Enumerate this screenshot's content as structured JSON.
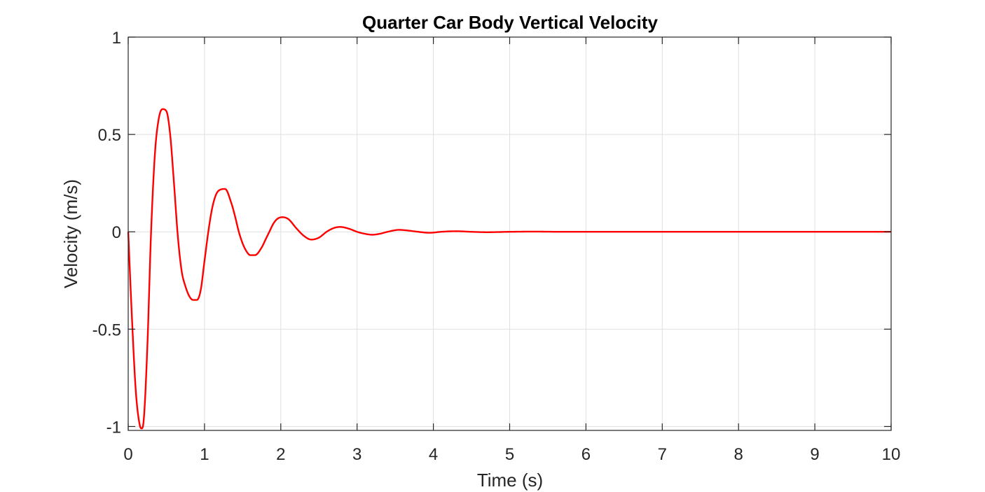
{
  "chart_data": {
    "type": "line",
    "title": "Quarter Car Body Vertical Velocity",
    "xlabel": "Time (s)",
    "ylabel": "Velocity (m/s)",
    "xlim": [
      0,
      10
    ],
    "ylim": [
      -1.02,
      1
    ],
    "xticks": [
      0,
      1,
      2,
      3,
      4,
      5,
      6,
      7,
      8,
      9,
      10
    ],
    "xtick_labels": [
      "0",
      "1",
      "2",
      "3",
      "4",
      "5",
      "6",
      "7",
      "8",
      "9",
      "10"
    ],
    "yticks": [
      -1,
      -0.5,
      0,
      0.5,
      1
    ],
    "ytick_labels": [
      "-1",
      "-0.5",
      "0",
      "0.5",
      "1"
    ],
    "grid": true,
    "series": [
      {
        "color": "#ff0000",
        "x": [
          0,
          0.05,
          0.1,
          0.15,
          0.175,
          0.2,
          0.25,
          0.3,
          0.35,
          0.4,
          0.45,
          0.5,
          0.55,
          0.6,
          0.65,
          0.7,
          0.75,
          0.8,
          0.85,
          0.9,
          0.95,
          1.0,
          1.05,
          1.1,
          1.15,
          1.2,
          1.27,
          1.35,
          1.4,
          1.45,
          1.5,
          1.55,
          1.6,
          1.66,
          1.75,
          1.8,
          1.85,
          1.9,
          1.95,
          2.02,
          2.1,
          2.2,
          2.3,
          2.4,
          2.5,
          2.6,
          2.7,
          2.78,
          2.9,
          3.0,
          3.1,
          3.2,
          3.3,
          3.4,
          3.55,
          3.7,
          3.8,
          3.95,
          4.1,
          4.3,
          4.5,
          4.7,
          5.0,
          5.3,
          5.7,
          6.0,
          6.5,
          7.0,
          8.0,
          9.0,
          10.0
        ],
        "values": [
          0,
          -0.45,
          -0.82,
          -0.99,
          -1.01,
          -0.98,
          -0.6,
          0.0,
          0.4,
          0.58,
          0.63,
          0.62,
          0.5,
          0.25,
          -0.02,
          -0.2,
          -0.28,
          -0.33,
          -0.35,
          -0.35,
          -0.3,
          -0.15,
          0.0,
          0.12,
          0.19,
          0.215,
          0.22,
          0.15,
          0.08,
          0.0,
          -0.06,
          -0.1,
          -0.12,
          -0.12,
          -0.08,
          -0.04,
          0.0,
          0.04,
          0.065,
          0.075,
          0.065,
          0.02,
          -0.02,
          -0.04,
          -0.03,
          0.0,
          0.02,
          0.025,
          0.015,
          0.0,
          -0.01,
          -0.015,
          -0.01,
          0.0,
          0.01,
          0.005,
          0.0,
          -0.005,
          0.0,
          0.003,
          0.0,
          -0.002,
          0.0,
          0.001,
          0.0,
          0.0,
          0.0,
          0.0,
          0.0,
          0.0,
          0.0
        ]
      }
    ]
  }
}
